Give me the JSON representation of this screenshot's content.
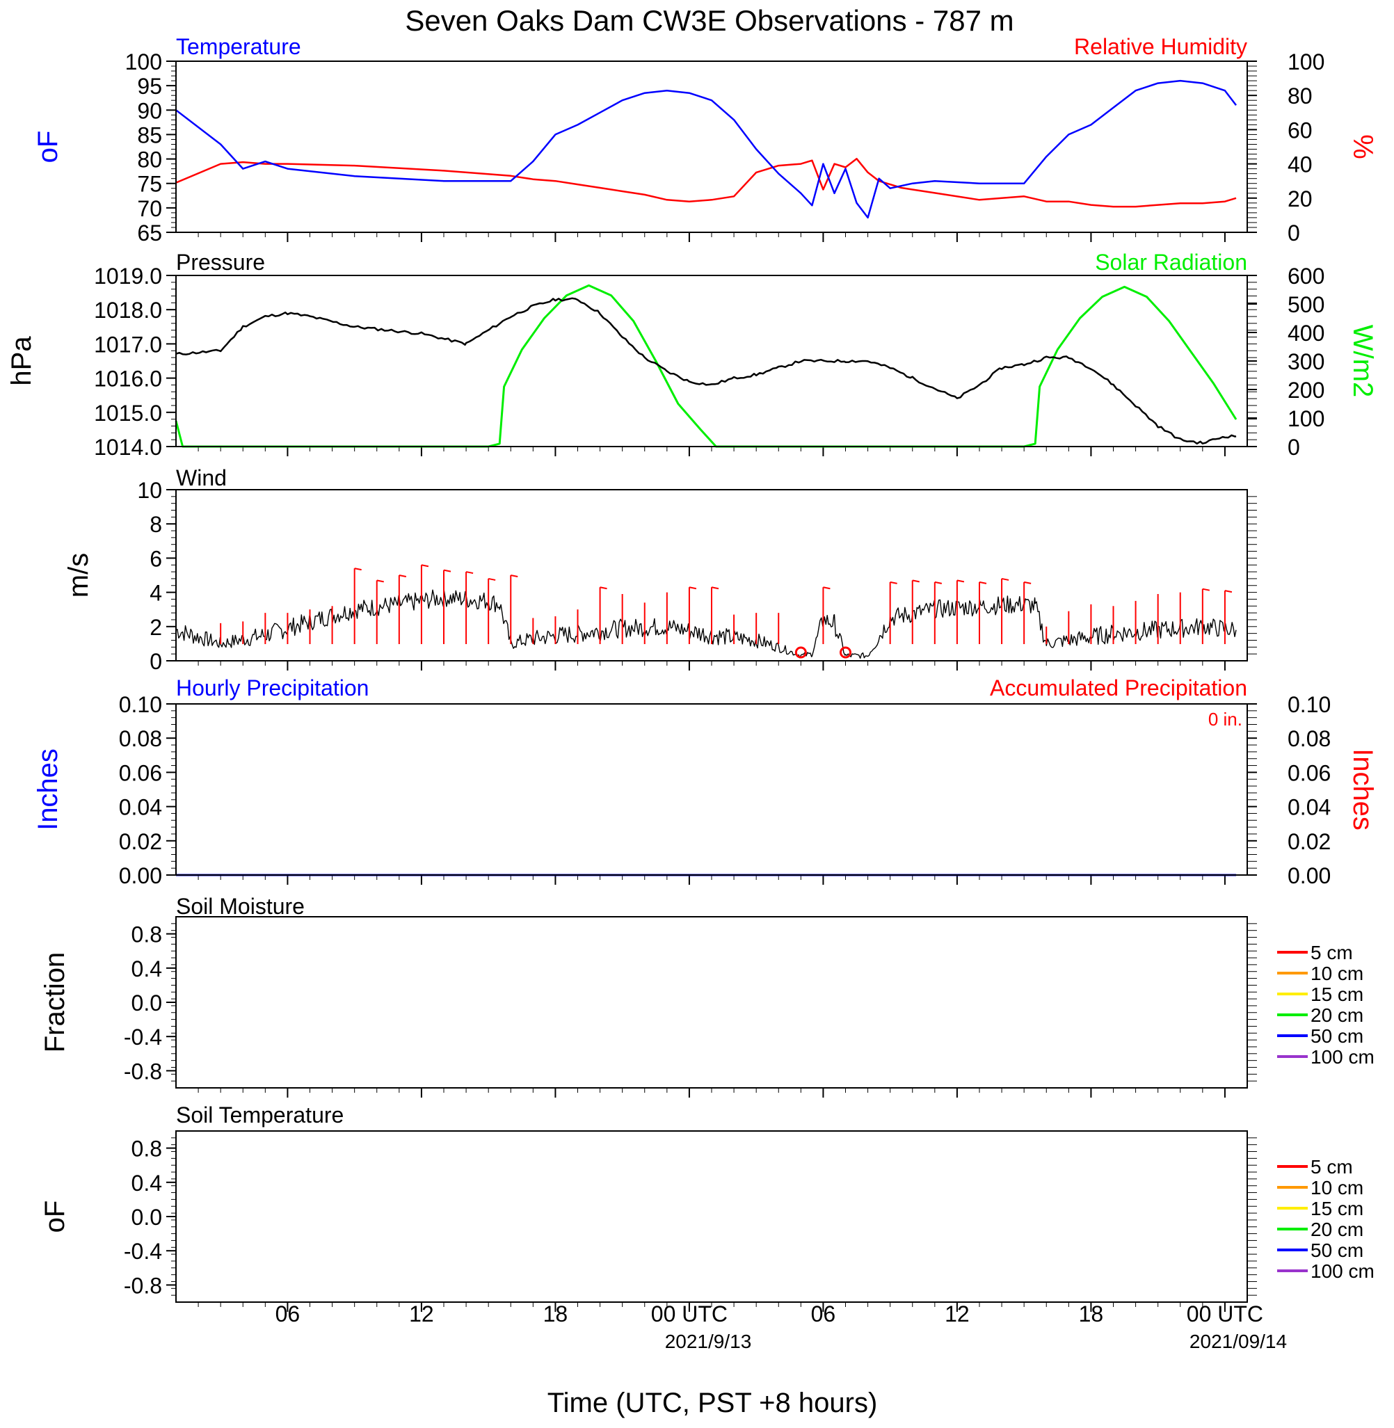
{
  "title": "Seven Oaks Dam CW3E Observations - 787 m",
  "x_axis": {
    "label": "Time (UTC, PST +8 hours)",
    "ticks": [
      "06",
      "12",
      "18",
      "00 UTC",
      "06",
      "12",
      "18",
      "00 UTC"
    ],
    "dates": [
      "2021/9/13",
      "2021/09/14"
    ]
  },
  "colors": {
    "temperature": "#0000ff",
    "humidity": "#ff0000",
    "pressure": "#000000",
    "solar": "#00ee00",
    "wind": "#000000",
    "barbs": "#ff0000",
    "hourly_precip": "#0000ff",
    "accum_precip": "#cc0000",
    "legend": [
      "#ff0000",
      "#ff9900",
      "#ffee00",
      "#00ee00",
      "#0000ff",
      "#9933cc"
    ]
  },
  "chart_data": [
    {
      "type": "line",
      "title_left": "Temperature",
      "title_right": "Relative Humidity",
      "ylabel_left": "oF",
      "ylabel_right": "%",
      "ylim_left": [
        65,
        100
      ],
      "ylim_right": [
        0,
        100
      ],
      "yticks_left": [
        "100",
        "95",
        "90",
        "85",
        "80",
        "75",
        "70",
        "65"
      ],
      "yticks_right": [
        "100",
        "80",
        "60",
        "40",
        "20",
        "0"
      ],
      "x_hours": [
        0,
        2,
        3,
        4,
        5,
        8,
        12,
        15,
        16,
        17,
        18,
        19,
        20,
        21,
        22,
        23,
        24,
        25,
        26,
        27,
        28,
        28.5,
        29,
        29.5,
        30,
        30.5,
        31,
        31.5,
        32,
        32.5,
        33,
        34,
        36,
        38,
        39,
        40,
        41,
        42,
        43,
        44,
        45,
        46,
        47,
        47.5
      ],
      "series": [
        {
          "name": "Temperature",
          "values": [
            90,
            83,
            78,
            79.5,
            78,
            76.5,
            75.5,
            75.5,
            79.5,
            85,
            87,
            89.5,
            92,
            93.5,
            94,
            93.5,
            92,
            88,
            82,
            77,
            73,
            70.5,
            79,
            73,
            78,
            71,
            68,
            76,
            74,
            74.5,
            75,
            75.5,
            75,
            75,
            80.5,
            85,
            87,
            90.5,
            94,
            95.5,
            96,
            95.5,
            94,
            91
          ]
        },
        {
          "name": "Relative Humidity",
          "values": [
            29,
            40,
            41,
            40,
            40,
            39,
            36,
            33,
            31,
            30,
            28,
            26,
            24,
            22,
            19,
            18,
            19,
            21,
            35,
            39,
            40,
            42,
            25,
            40,
            38,
            43,
            35,
            30,
            28,
            26,
            25,
            23,
            19,
            21,
            18,
            18,
            16,
            15,
            15,
            16,
            17,
            17,
            18,
            20
          ]
        }
      ]
    },
    {
      "type": "line",
      "title_left": "Pressure",
      "title_right": "Solar Radiation",
      "ylabel_left": "hPa",
      "ylabel_right": "W/m2",
      "ylim_left": [
        1014,
        1019
      ],
      "ylim_right": [
        0,
        600
      ],
      "yticks_left": [
        "1019.0",
        "1018.0",
        "1017.0",
        "1016.0",
        "1015.0",
        "1014.0"
      ],
      "yticks_right": [
        "600",
        "500",
        "400",
        "300",
        "200",
        "100",
        "0"
      ],
      "series": [
        {
          "name": "Pressure",
          "x_hours": [
            0,
            2,
            3,
            4,
            5,
            6,
            8,
            11,
            13,
            15,
            16,
            17,
            18,
            19,
            20,
            21,
            22,
            23,
            24,
            25,
            26,
            27,
            28,
            30,
            31,
            32,
            33,
            34,
            35,
            36,
            37,
            38,
            39,
            40,
            41,
            42,
            43,
            44,
            45,
            46,
            47,
            47.5
          ],
          "values": [
            1016.7,
            1016.8,
            1017.5,
            1017.8,
            1017.9,
            1017.8,
            1017.5,
            1017.3,
            1017.0,
            1017.8,
            1018.1,
            1018.3,
            1018.3,
            1017.9,
            1017.2,
            1016.6,
            1016.2,
            1015.9,
            1015.8,
            1016.0,
            1016.1,
            1016.3,
            1016.5,
            1016.5,
            1016.5,
            1016.3,
            1016.0,
            1015.7,
            1015.4,
            1015.8,
            1016.3,
            1016.4,
            1016.6,
            1016.6,
            1016.3,
            1015.8,
            1015.2,
            1014.6,
            1014.2,
            1014.1,
            1014.3,
            1014.3
          ]
        },
        {
          "name": "Solar Radiation",
          "x_hours": [
            0,
            0.3,
            14,
            14.5,
            14.7,
            15.5,
            16.5,
            17.5,
            18.5,
            19.5,
            20.5,
            21.5,
            22.5,
            23.5,
            24.2,
            24.3,
            38,
            38.5,
            38.7,
            39.5,
            40.5,
            41.5,
            42.5,
            43.5,
            44.5,
            45.5,
            46.5,
            47.5
          ],
          "values": [
            90,
            0,
            0,
            10,
            210,
            340,
            450,
            530,
            565,
            530,
            440,
            300,
            150,
            60,
            0,
            0,
            0,
            10,
            210,
            340,
            450,
            525,
            560,
            525,
            440,
            330,
            220,
            95
          ]
        }
      ]
    },
    {
      "type": "line",
      "title_left": "Wind",
      "ylabel_left": "m/s",
      "ylim_left": [
        0,
        10
      ],
      "yticks_left": [
        "10",
        "8",
        "6",
        "4",
        "2",
        "0"
      ],
      "x_hours": [
        0,
        2,
        4,
        6,
        8,
        10,
        12,
        14,
        14.5,
        15,
        16,
        18,
        20,
        22,
        24,
        26,
        27,
        28,
        28.5,
        29,
        29.5,
        30,
        31,
        32,
        34,
        36,
        38,
        38.5,
        39,
        40,
        42,
        44,
        46,
        47.5
      ],
      "series": [
        {
          "name": "Wind speed",
          "values": [
            1.8,
            1.0,
            1.5,
            2.3,
            3.0,
            3.3,
            3.7,
            3.5,
            3.3,
            1.0,
            1.3,
            1.6,
            1.9,
            2.0,
            1.5,
            1.2,
            0.8,
            0.3,
            0.4,
            2.4,
            2.2,
            0.3,
            0.3,
            2.5,
            3.0,
            3.2,
            3.3,
            3.2,
            1.0,
            1.2,
            1.6,
            1.8,
            2.0,
            1.8
          ]
        }
      ],
      "barbs": {
        "x_hours": [
          2,
          3,
          4,
          5,
          6,
          7,
          8,
          9,
          10,
          11,
          12,
          13,
          14,
          15,
          16,
          17,
          18,
          19,
          20,
          21,
          22,
          23,
          24,
          25,
          26,
          27,
          29,
          32,
          33,
          34,
          35,
          36,
          37,
          38,
          39,
          40,
          41,
          42,
          43,
          44,
          45,
          46,
          47
        ],
        "values": [
          2.2,
          2.3,
          2.8,
          2.8,
          3.0,
          3.2,
          5.4,
          4.7,
          5.0,
          5.6,
          5.3,
          5.2,
          4.8,
          5.0,
          2.5,
          2.6,
          3.0,
          4.3,
          3.9,
          3.4,
          4.0,
          4.3,
          4.3,
          2.7,
          2.8,
          2.8,
          4.3,
          4.6,
          4.7,
          4.6,
          4.7,
          4.6,
          4.8,
          4.6,
          2.0,
          2.9,
          3.3,
          3.2,
          3.5,
          3.9,
          4.0,
          4.2,
          4.1
        ],
        "calm_x_hours": [
          28,
          30
        ]
      }
    },
    {
      "type": "line",
      "title_left": "Hourly Precipitation",
      "title_right": "Accumulated Precipitation",
      "annotation": "0 in.",
      "ylabel_left": "Inches",
      "ylabel_right": "Inches",
      "ylim_left": [
        0,
        0.1
      ],
      "ylim_right": [
        0,
        0.1
      ],
      "yticks_left": [
        "0.10",
        "0.08",
        "0.06",
        "0.04",
        "0.02",
        "0.00"
      ],
      "yticks_right": [
        "0.10",
        "0.08",
        "0.06",
        "0.04",
        "0.02",
        "0.00"
      ],
      "x_hours": [
        0,
        47.5
      ],
      "series": [
        {
          "name": "Hourly Precipitation",
          "values": [
            0,
            0
          ]
        },
        {
          "name": "Accumulated Precipitation",
          "values": [
            0,
            0
          ]
        }
      ]
    },
    {
      "type": "line",
      "title_left": "Soil Moisture",
      "ylabel_left": "Fraction",
      "ylim_left": [
        -1,
        1
      ],
      "yticks_left": [
        "0.8",
        "0.4",
        "0.0",
        "-0.4",
        "-0.8"
      ],
      "legend": [
        "5 cm",
        "10 cm",
        "15 cm",
        "20 cm",
        "50 cm",
        "100 cm"
      ],
      "series": []
    },
    {
      "type": "line",
      "title_left": "Soil Temperature",
      "ylabel_left": "oF",
      "ylim_left": [
        -1,
        1
      ],
      "yticks_left": [
        "0.8",
        "0.4",
        "0.0",
        "-0.4",
        "-0.8"
      ],
      "legend": [
        "5 cm",
        "10 cm",
        "15 cm",
        "20 cm",
        "50 cm",
        "100 cm"
      ],
      "series": []
    }
  ]
}
